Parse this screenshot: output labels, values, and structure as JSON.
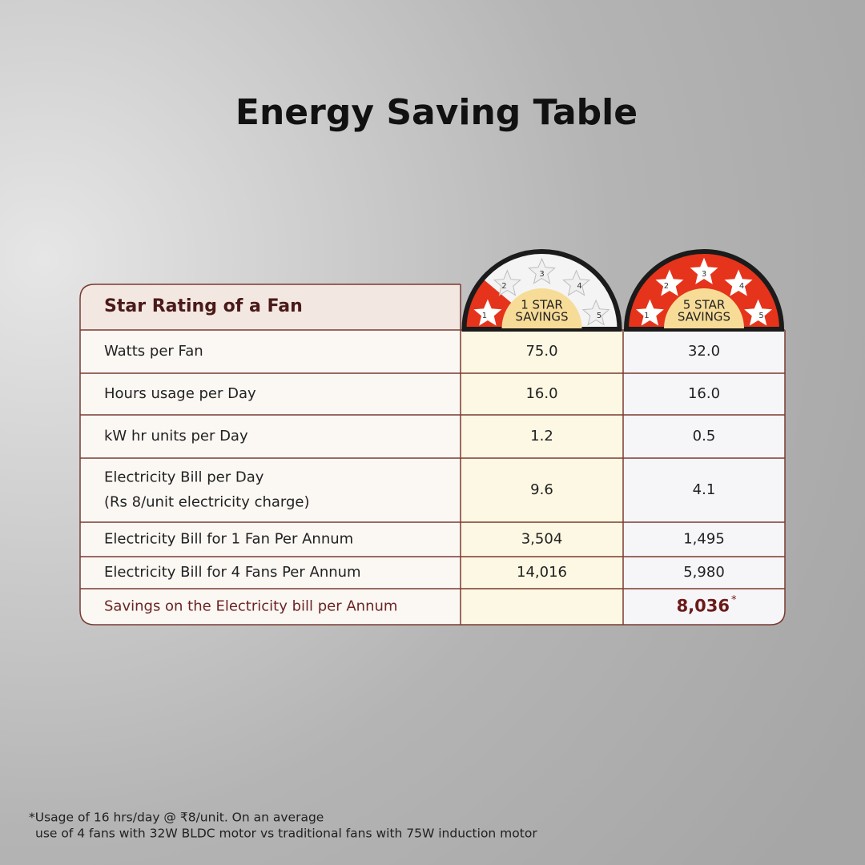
{
  "title": "Energy Saving Table",
  "table": {
    "header": "Star Rating of a Fan",
    "badges": [
      {
        "lines": [
          "1 STAR",
          "SAVINGS"
        ]
      },
      {
        "lines": [
          "5 STAR",
          "SAVINGS"
        ]
      }
    ],
    "star_numbers": [
      "1",
      "2",
      "3",
      "4",
      "5"
    ],
    "rows": [
      {
        "label": [
          "Watts per Fan"
        ],
        "one_star": "75.0",
        "five_star": "32.0"
      },
      {
        "label": [
          "Hours usage per Day"
        ],
        "one_star": "16.0",
        "five_star": "16.0"
      },
      {
        "label": [
          "kW hr units per Day"
        ],
        "one_star": "1.2",
        "five_star": "0.5"
      },
      {
        "label": [
          "Electricity Bill per Day",
          "(Rs 8/unit electricity charge)"
        ],
        "one_star": "9.6",
        "five_star": "4.1"
      },
      {
        "label": [
          "Electricity Bill for 1 Fan Per Annum"
        ],
        "one_star": "3,504",
        "five_star": "1,495"
      },
      {
        "label": [
          "Electricity Bill for 4 Fans Per Annum"
        ],
        "one_star": "14,016",
        "five_star": "5,980"
      }
    ],
    "savings": {
      "label": "Savings on the Electricity bill per Annum",
      "value": "8,036",
      "mark": "*"
    }
  },
  "footnote": [
    "*Usage of 16 hrs/day @ ₹8/unit. On an average",
    "use of 4 fans with 32W BLDC motor vs traditional fans with 75W induction motor"
  ]
}
